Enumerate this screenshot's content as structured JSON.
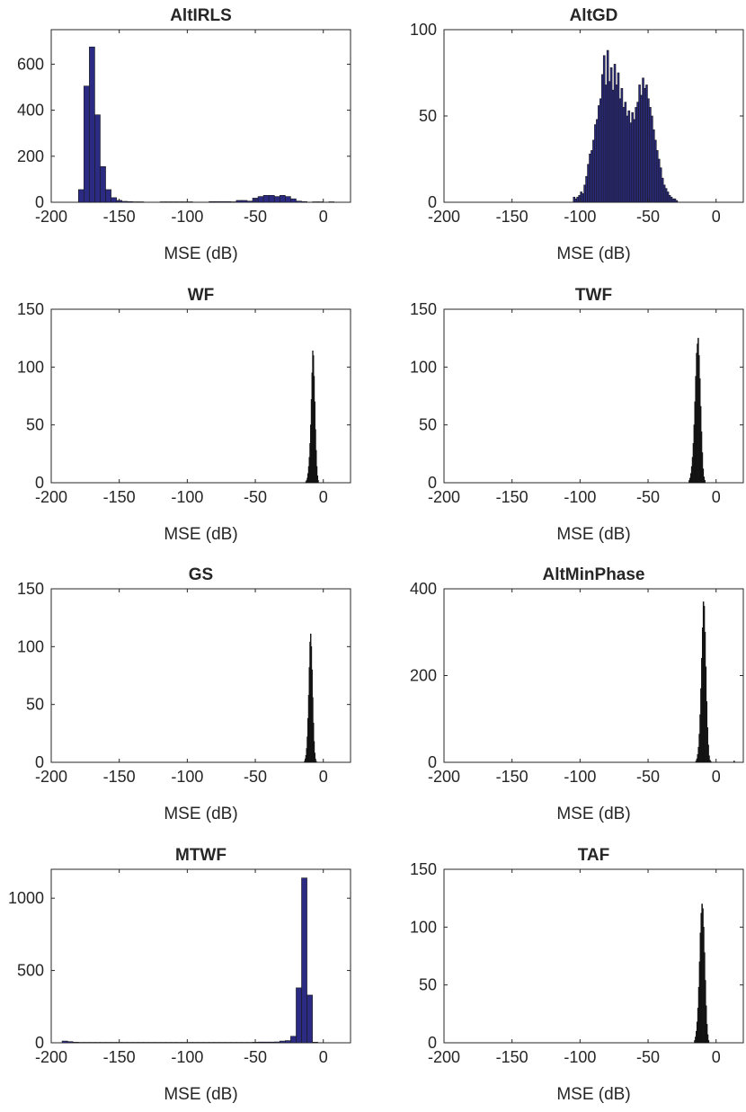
{
  "chart_data": [
    {
      "type": "bar",
      "title": "AltIRLS",
      "xlabel": "MSE (dB)",
      "xlim": [
        -200,
        20
      ],
      "ylim": [
        0,
        750
      ],
      "xticks": [
        -200,
        -150,
        -100,
        -50,
        0
      ],
      "yticks": [
        0,
        200,
        400,
        600
      ],
      "bin_width": 4,
      "colors": {
        "bar": "#2b2b84",
        "edge": "#1a1a1a"
      },
      "bins": [
        [
          -180,
          55
        ],
        [
          -176,
          505
        ],
        [
          -172,
          675
        ],
        [
          -168,
          380
        ],
        [
          -164,
          155
        ],
        [
          -160,
          55
        ],
        [
          -156,
          20
        ],
        [
          -152,
          8
        ],
        [
          -148,
          4
        ],
        [
          -144,
          3
        ],
        [
          -140,
          2
        ],
        [
          -136,
          2
        ],
        [
          -120,
          2
        ],
        [
          -116,
          2
        ],
        [
          -112,
          2
        ],
        [
          -108,
          2
        ],
        [
          -104,
          2
        ],
        [
          -100,
          2
        ],
        [
          -84,
          3
        ],
        [
          -80,
          3
        ],
        [
          -76,
          3
        ],
        [
          -72,
          3
        ],
        [
          -68,
          2
        ],
        [
          -64,
          8
        ],
        [
          -60,
          8
        ],
        [
          -56,
          5
        ],
        [
          -52,
          18
        ],
        [
          -48,
          25
        ],
        [
          -44,
          30
        ],
        [
          -40,
          30
        ],
        [
          -36,
          25
        ],
        [
          -32,
          30
        ],
        [
          -28,
          25
        ],
        [
          -24,
          15
        ],
        [
          -20,
          5
        ],
        [
          -16,
          3
        ],
        [
          -8,
          2
        ],
        [
          -4,
          2
        ],
        [
          4,
          2
        ]
      ]
    },
    {
      "type": "bar",
      "title": "AltGD",
      "xlabel": "MSE (dB)",
      "xlim": [
        -200,
        20
      ],
      "ylim": [
        0,
        100
      ],
      "xticks": [
        -200,
        -150,
        -100,
        -50,
        0
      ],
      "yticks": [
        0,
        50,
        100
      ],
      "bin_width": 1.3,
      "colors": {
        "bar": "#2b2b84",
        "edge": "#1a1a1a"
      },
      "bins": [
        [
          -105.0,
          3
        ],
        [
          -103.7,
          2
        ],
        [
          -102.4,
          3
        ],
        [
          -101.1,
          4
        ],
        [
          -99.8,
          6
        ],
        [
          -98.5,
          5
        ],
        [
          -97.2,
          10
        ],
        [
          -95.9,
          15
        ],
        [
          -94.6,
          22
        ],
        [
          -93.3,
          28
        ],
        [
          -92.0,
          30
        ],
        [
          -90.7,
          36
        ],
        [
          -89.4,
          45
        ],
        [
          -88.1,
          48
        ],
        [
          -86.8,
          56
        ],
        [
          -85.5,
          60
        ],
        [
          -84.2,
          74
        ],
        [
          -82.9,
          85
        ],
        [
          -81.6,
          68
        ],
        [
          -80.3,
          88
        ],
        [
          -79.0,
          70
        ],
        [
          -77.7,
          78
        ],
        [
          -76.4,
          65
        ],
        [
          -75.1,
          80
        ],
        [
          -73.8,
          68
        ],
        [
          -72.5,
          75
        ],
        [
          -71.2,
          60
        ],
        [
          -69.9,
          66
        ],
        [
          -68.6,
          55
        ],
        [
          -67.3,
          58
        ],
        [
          -66.0,
          50
        ],
        [
          -64.7,
          53
        ],
        [
          -63.4,
          46
        ],
        [
          -62.1,
          52
        ],
        [
          -60.8,
          48
        ],
        [
          -59.5,
          55
        ],
        [
          -58.2,
          58
        ],
        [
          -56.9,
          68
        ],
        [
          -55.6,
          62
        ],
        [
          -54.3,
          72
        ],
        [
          -53.0,
          66
        ],
        [
          -51.7,
          68
        ],
        [
          -50.4,
          60
        ],
        [
          -49.1,
          55
        ],
        [
          -47.8,
          50
        ],
        [
          -46.5,
          42
        ],
        [
          -45.2,
          36
        ],
        [
          -43.9,
          30
        ],
        [
          -42.6,
          25
        ],
        [
          -41.3,
          20
        ],
        [
          -40.0,
          14
        ],
        [
          -38.7,
          10
        ],
        [
          -37.4,
          8
        ],
        [
          -36.1,
          6
        ],
        [
          -34.8,
          4
        ],
        [
          -33.5,
          3
        ],
        [
          -32.2,
          2
        ],
        [
          -30.9,
          2
        ],
        [
          -29.6,
          1
        ]
      ]
    },
    {
      "type": "bar",
      "title": "WF",
      "xlabel": "MSE (dB)",
      "xlim": [
        -200,
        20
      ],
      "ylim": [
        0,
        150
      ],
      "xticks": [
        -200,
        -150,
        -100,
        -50,
        0
      ],
      "yticks": [
        0,
        50,
        100,
        150
      ],
      "bin_width": 0.5,
      "colors": {
        "bar": "#1c1c1c",
        "edge": "#111111"
      },
      "bins": [
        [
          -13.0,
          1
        ],
        [
          -12.5,
          2
        ],
        [
          -12.0,
          4
        ],
        [
          -11.5,
          8
        ],
        [
          -11.0,
          14
        ],
        [
          -10.5,
          22
        ],
        [
          -10.0,
          34
        ],
        [
          -9.5,
          50
        ],
        [
          -9.0,
          72
        ],
        [
          -8.5,
          95
        ],
        [
          -8.0,
          114
        ],
        [
          -7.5,
          110
        ],
        [
          -7.0,
          92
        ],
        [
          -6.5,
          70
        ],
        [
          -6.0,
          46
        ],
        [
          -5.5,
          28
        ],
        [
          -5.0,
          14
        ],
        [
          -4.5,
          6
        ],
        [
          -4.0,
          2
        ]
      ]
    },
    {
      "type": "bar",
      "title": "TWF",
      "xlabel": "MSE (dB)",
      "xlim": [
        -200,
        20
      ],
      "ylim": [
        0,
        150
      ],
      "xticks": [
        -200,
        -150,
        -100,
        -50,
        0
      ],
      "yticks": [
        0,
        50,
        100,
        150
      ],
      "bin_width": 0.6,
      "colors": {
        "bar": "#1c1c1c",
        "edge": "#111111"
      },
      "bins": [
        [
          -20.0,
          2
        ],
        [
          -19.4,
          4
        ],
        [
          -18.8,
          8
        ],
        [
          -18.2,
          14
        ],
        [
          -17.6,
          22
        ],
        [
          -17.0,
          34
        ],
        [
          -16.4,
          50
        ],
        [
          -15.8,
          70
        ],
        [
          -15.2,
          92
        ],
        [
          -14.6,
          112
        ],
        [
          -14.0,
          120
        ],
        [
          -13.4,
          125
        ],
        [
          -12.8,
          110
        ],
        [
          -12.2,
          90
        ],
        [
          -11.6,
          66
        ],
        [
          -11.0,
          44
        ],
        [
          -10.4,
          26
        ],
        [
          -9.8,
          12
        ],
        [
          -9.2,
          5
        ],
        [
          -8.6,
          2
        ]
      ]
    },
    {
      "type": "bar",
      "title": "GS",
      "xlabel": "MSE (dB)",
      "xlim": [
        -200,
        20
      ],
      "ylim": [
        0,
        150
      ],
      "xticks": [
        -200,
        -150,
        -100,
        -50,
        0
      ],
      "yticks": [
        0,
        50,
        100,
        150
      ],
      "bin_width": 0.5,
      "colors": {
        "bar": "#1c1c1c",
        "edge": "#111111"
      },
      "bins": [
        [
          -14.0,
          1
        ],
        [
          -13.5,
          3
        ],
        [
          -13.0,
          6
        ],
        [
          -12.5,
          12
        ],
        [
          -12.0,
          22
        ],
        [
          -11.5,
          38
        ],
        [
          -11.0,
          58
        ],
        [
          -10.5,
          82
        ],
        [
          -10.0,
          104
        ],
        [
          -9.5,
          111
        ],
        [
          -9.0,
          100
        ],
        [
          -8.5,
          80
        ],
        [
          -8.0,
          56
        ],
        [
          -7.5,
          34
        ],
        [
          -7.0,
          18
        ],
        [
          -6.5,
          8
        ],
        [
          -6.0,
          3
        ],
        [
          -5.5,
          1
        ]
      ]
    },
    {
      "type": "bar",
      "title": "AltMinPhase",
      "xlabel": "MSE (dB)",
      "xlim": [
        -200,
        20
      ],
      "ylim": [
        0,
        400
      ],
      "xticks": [
        -200,
        -150,
        -100,
        -50,
        0
      ],
      "yticks": [
        0,
        200,
        400
      ],
      "bin_width": 0.6,
      "colors": {
        "bar": "#1c1c1c",
        "edge": "#111111"
      },
      "bins": [
        [
          -15.0,
          3
        ],
        [
          -14.4,
          8
        ],
        [
          -13.8,
          18
        ],
        [
          -13.2,
          35
        ],
        [
          -12.6,
          65
        ],
        [
          -12.0,
          110
        ],
        [
          -11.4,
          170
        ],
        [
          -10.8,
          240
        ],
        [
          -10.2,
          310
        ],
        [
          -9.6,
          370
        ],
        [
          -9.0,
          360
        ],
        [
          -8.4,
          300
        ],
        [
          -7.8,
          220
        ],
        [
          -7.2,
          140
        ],
        [
          -6.6,
          80
        ],
        [
          -6.0,
          40
        ],
        [
          -5.4,
          15
        ],
        [
          -4.8,
          5
        ],
        [
          -4.2,
          2
        ],
        [
          13.0,
          3
        ]
      ]
    },
    {
      "type": "bar",
      "title": "MTWF",
      "xlabel": "MSE (dB)",
      "xlim": [
        -200,
        20
      ],
      "ylim": [
        0,
        1200
      ],
      "xticks": [
        -200,
        -150,
        -100,
        -50,
        0
      ],
      "yticks": [
        0,
        500,
        1000
      ],
      "bin_width": 4,
      "colors": {
        "bar": "#2b2b84",
        "edge": "#1a1a1a"
      },
      "bins": [
        [
          -192,
          12
        ],
        [
          -188,
          8
        ],
        [
          -184,
          4
        ],
        [
          -180,
          3
        ],
        [
          -176,
          3
        ],
        [
          -172,
          3
        ],
        [
          -168,
          3
        ],
        [
          -164,
          3
        ],
        [
          -160,
          3
        ],
        [
          -156,
          3
        ],
        [
          -152,
          3
        ],
        [
          -148,
          3
        ],
        [
          -144,
          3
        ],
        [
          -140,
          3
        ],
        [
          -136,
          3
        ],
        [
          -132,
          3
        ],
        [
          -128,
          3
        ],
        [
          -124,
          3
        ],
        [
          -120,
          3
        ],
        [
          -116,
          3
        ],
        [
          -112,
          3
        ],
        [
          -108,
          3
        ],
        [
          -104,
          3
        ],
        [
          -100,
          3
        ],
        [
          -96,
          3
        ],
        [
          -92,
          3
        ],
        [
          -88,
          3
        ],
        [
          -84,
          3
        ],
        [
          -80,
          3
        ],
        [
          -76,
          3
        ],
        [
          -72,
          3
        ],
        [
          -68,
          3
        ],
        [
          -64,
          3
        ],
        [
          -60,
          3
        ],
        [
          -56,
          3
        ],
        [
          -52,
          4
        ],
        [
          -48,
          5
        ],
        [
          -44,
          5
        ],
        [
          -40,
          5
        ],
        [
          -36,
          6
        ],
        [
          -32,
          12
        ],
        [
          -28,
          15
        ],
        [
          -24,
          45
        ],
        [
          -20,
          380
        ],
        [
          -16,
          1140
        ],
        [
          -12,
          330
        ],
        [
          -8,
          4
        ]
      ]
    },
    {
      "type": "bar",
      "title": "TAF",
      "xlabel": "MSE (dB)",
      "xlim": [
        -200,
        20
      ],
      "ylim": [
        0,
        150
      ],
      "xticks": [
        -200,
        -150,
        -100,
        -50,
        0
      ],
      "yticks": [
        0,
        50,
        100,
        150
      ],
      "bin_width": 0.6,
      "colors": {
        "bar": "#1c1c1c",
        "edge": "#111111"
      },
      "bins": [
        [
          -16.0,
          2
        ],
        [
          -15.4,
          5
        ],
        [
          -14.8,
          10
        ],
        [
          -14.2,
          18
        ],
        [
          -13.6,
          30
        ],
        [
          -13.0,
          48
        ],
        [
          -12.4,
          70
        ],
        [
          -11.8,
          95
        ],
        [
          -11.2,
          112
        ],
        [
          -10.6,
          120
        ],
        [
          -10.0,
          116
        ],
        [
          -9.4,
          100
        ],
        [
          -8.8,
          78
        ],
        [
          -8.2,
          54
        ],
        [
          -7.6,
          32
        ],
        [
          -7.0,
          16
        ],
        [
          -6.4,
          7
        ],
        [
          -5.8,
          2
        ]
      ]
    }
  ]
}
